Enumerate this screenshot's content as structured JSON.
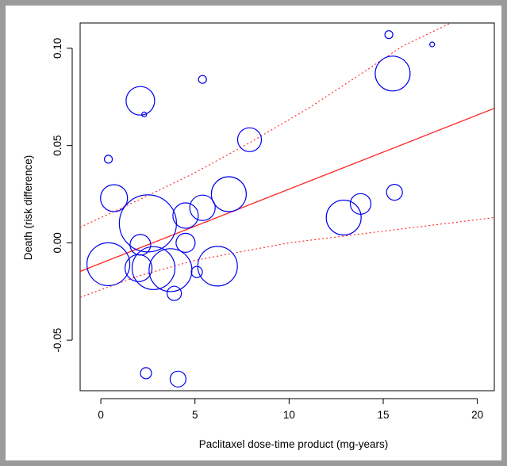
{
  "chart_data": {
    "type": "scatter",
    "title": "",
    "xlabel": "Paclitaxel dose-time product (mg-years)",
    "ylabel": "Death (risk difference)",
    "xlim": [
      -1.1,
      20.9
    ],
    "ylim": [
      -0.076,
      0.113
    ],
    "x_ticks": [
      0,
      5,
      10,
      15,
      20
    ],
    "y_ticks": [
      -0.05,
      0.0,
      0.05,
      0.1
    ],
    "x_tick_labels": [
      "0",
      "5",
      "10",
      "15",
      "20"
    ],
    "y_tick_labels": [
      "-0.05",
      "0.00",
      "0.05",
      "0.10"
    ],
    "grid": false,
    "colors": {
      "points": "#0000ee",
      "fit": "#ff2020",
      "axis": "#000000"
    },
    "points": [
      {
        "x": 0.4,
        "y": 0.043,
        "r": 5
      },
      {
        "x": 0.7,
        "y": 0.023,
        "r": 17
      },
      {
        "x": 0.4,
        "y": -0.011,
        "r": 27
      },
      {
        "x": 2.1,
        "y": 0.073,
        "r": 18
      },
      {
        "x": 2.3,
        "y": 0.066,
        "r": 3
      },
      {
        "x": 2.1,
        "y": -0.001,
        "r": 13
      },
      {
        "x": 2.0,
        "y": -0.013,
        "r": 17
      },
      {
        "x": 2.5,
        "y": 0.01,
        "r": 36
      },
      {
        "x": 2.8,
        "y": -0.013,
        "r": 27
      },
      {
        "x": 3.7,
        "y": -0.014,
        "r": 27
      },
      {
        "x": 3.9,
        "y": -0.026,
        "r": 9
      },
      {
        "x": 4.5,
        "y": 0.014,
        "r": 16
      },
      {
        "x": 4.5,
        "y": 0.0,
        "r": 12
      },
      {
        "x": 5.1,
        "y": -0.015,
        "r": 7
      },
      {
        "x": 5.4,
        "y": 0.018,
        "r": 16
      },
      {
        "x": 5.4,
        "y": 0.084,
        "r": 5
      },
      {
        "x": 6.2,
        "y": -0.012,
        "r": 25
      },
      {
        "x": 6.8,
        "y": 0.025,
        "r": 22
      },
      {
        "x": 7.9,
        "y": 0.053,
        "r": 15
      },
      {
        "x": 12.9,
        "y": 0.013,
        "r": 22
      },
      {
        "x": 13.8,
        "y": 0.02,
        "r": 13
      },
      {
        "x": 15.3,
        "y": 0.107,
        "r": 5
      },
      {
        "x": 15.5,
        "y": 0.087,
        "r": 22
      },
      {
        "x": 15.6,
        "y": 0.026,
        "r": 10
      },
      {
        "x": 17.6,
        "y": 0.102,
        "r": 3
      },
      {
        "x": 2.4,
        "y": -0.067,
        "r": 7
      },
      {
        "x": 4.1,
        "y": -0.07,
        "r": 10
      }
    ],
    "fit_line": {
      "intercept": -0.0105,
      "slope": 0.00381
    },
    "ci_upper": [
      {
        "x": -1.1,
        "y": 0.008
      },
      {
        "x": 2,
        "y": 0.022
      },
      {
        "x": 5,
        "y": 0.036
      },
      {
        "x": 8,
        "y": 0.052
      },
      {
        "x": 11,
        "y": 0.069
      },
      {
        "x": 14,
        "y": 0.088
      },
      {
        "x": 16,
        "y": 0.101
      },
      {
        "x": 18.6,
        "y": 0.113
      }
    ],
    "ci_lower": [
      {
        "x": -1.1,
        "y": -0.028
      },
      {
        "x": 2,
        "y": -0.017
      },
      {
        "x": 5,
        "y": -0.009
      },
      {
        "x": 10,
        "y": 0.0
      },
      {
        "x": 15,
        "y": 0.006
      },
      {
        "x": 20.9,
        "y": 0.013
      }
    ]
  }
}
